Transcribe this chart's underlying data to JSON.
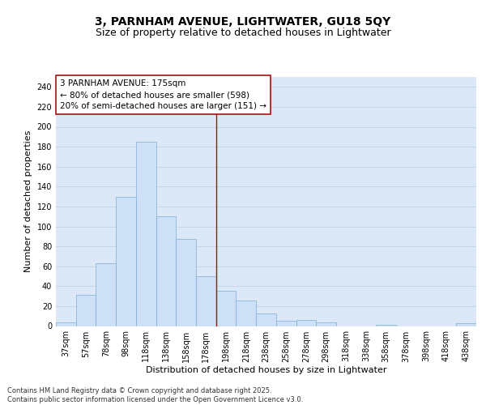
{
  "title": "3, PARNHAM AVENUE, LIGHTWATER, GU18 5QY",
  "subtitle": "Size of property relative to detached houses in Lightwater",
  "xlabel": "Distribution of detached houses by size in Lightwater",
  "ylabel": "Number of detached properties",
  "categories": [
    "37sqm",
    "57sqm",
    "78sqm",
    "98sqm",
    "118sqm",
    "138sqm",
    "158sqm",
    "178sqm",
    "198sqm",
    "218sqm",
    "238sqm",
    "258sqm",
    "278sqm",
    "298sqm",
    "318sqm",
    "338sqm",
    "358sqm",
    "378sqm",
    "398sqm",
    "418sqm",
    "438sqm"
  ],
  "values": [
    4,
    31,
    63,
    130,
    185,
    110,
    87,
    50,
    35,
    26,
    13,
    5,
    6,
    4,
    0,
    0,
    1,
    0,
    0,
    0,
    3
  ],
  "bar_color": "#cde0f5",
  "bar_edge_color": "#7bafd4",
  "vline_x": 7.5,
  "vline_color": "#aa1111",
  "annotation_text": "3 PARNHAM AVENUE: 175sqm\n← 80% of detached houses are smaller (598)\n20% of semi-detached houses are larger (151) →",
  "annotation_box_color": "#aa1111",
  "ylim": [
    0,
    250
  ],
  "yticks": [
    0,
    20,
    40,
    60,
    80,
    100,
    120,
    140,
    160,
    180,
    200,
    220,
    240
  ],
  "grid_color": "#c8d4e8",
  "background_color": "#dce8f8",
  "footer_text": "Contains HM Land Registry data © Crown copyright and database right 2025.\nContains public sector information licensed under the Open Government Licence v3.0.",
  "title_fontsize": 10,
  "subtitle_fontsize": 9,
  "axis_label_fontsize": 8,
  "tick_fontsize": 7,
  "annotation_fontsize": 7.5,
  "footer_fontsize": 6
}
